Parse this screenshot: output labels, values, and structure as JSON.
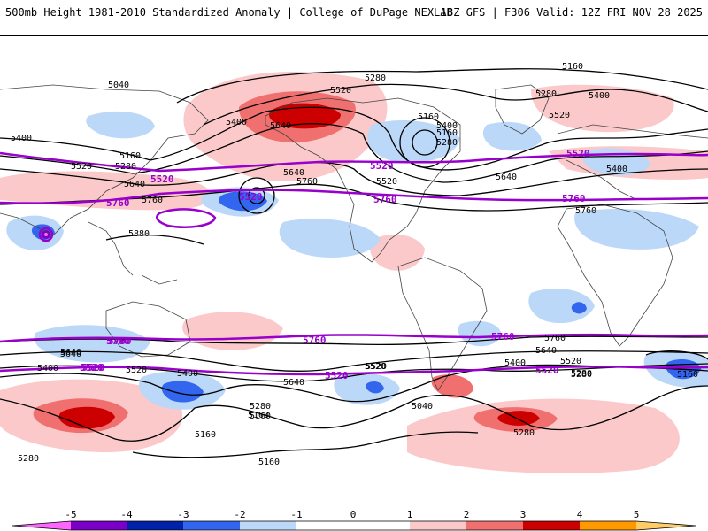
{
  "header": {
    "title": "500mb Height 1981-2010 Standardized Anomaly | College of DuPage NEXLAB",
    "run_info": "18Z GFS | F306 Valid: 12Z FRI NOV 28 2025"
  },
  "colors": {
    "contour": "#000000",
    "highlight_contour": "#9900cc",
    "neg5": "#ff66ff",
    "neg4": "#7a00c8",
    "neg3": "#0022aa",
    "neg2": "#3366ee",
    "neg1": "#bcd8f8",
    "pos1": "#fbc9c9",
    "pos2": "#f07070",
    "pos3": "#cc0000",
    "pos4": "#ff9900",
    "pos5": "#ffcc66"
  },
  "contour_labels": {
    "black": [
      "5160",
      "5040",
      "5280",
      "5520",
      "5400",
      "5640",
      "5160",
      "5280",
      "5400",
      "5520",
      "5640",
      "5160",
      "5280",
      "5400",
      "5520",
      "5640",
      "5760",
      "5160",
      "5280",
      "5400",
      "5520",
      "5640",
      "5760",
      "5880",
      "5400",
      "5160",
      "5280",
      "5760",
      "5640",
      "5400",
      "5520",
      "5640",
      "5400",
      "5160",
      "5280",
      "5040",
      "5520",
      "5160",
      "5280",
      "5160",
      "5280",
      "5760",
      "5640",
      "5400",
      "5520",
      "5640",
      "5520",
      "5160",
      "5280"
    ],
    "purple": [
      "5520",
      "5760",
      "5520",
      "5760",
      "5520",
      "5760",
      "5520",
      "5760",
      "5760",
      "5520",
      "5760",
      "5520",
      "5520",
      "5760",
      "5520"
    ]
  },
  "colorbar": {
    "ticks": [
      "-5",
      "-4",
      "-3",
      "-2",
      "-1",
      "0",
      "1",
      "2",
      "3",
      "4",
      "5"
    ]
  }
}
